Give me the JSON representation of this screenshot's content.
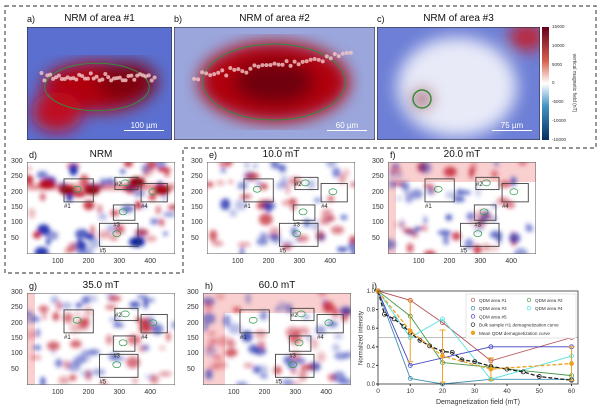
{
  "top_panels": [
    {
      "letter": "a)",
      "title": "NRM of area #1",
      "scale_bar": "100 µm"
    },
    {
      "letter": "b)",
      "title": "NRM of area #2",
      "scale_bar": "60 µm"
    },
    {
      "letter": "c)",
      "title": "NRM of area #3",
      "scale_bar": "75 µm"
    }
  ],
  "colorbar": {
    "label": "vertical magnetic field (nT)",
    "ticks": [
      "15000",
      "10000",
      "5000",
      "0",
      "-5000",
      "-10000",
      "-15000"
    ],
    "colors": [
      "#67001f",
      "#d6604d",
      "#ffffff",
      "#4393c3",
      "#053061"
    ]
  },
  "map_panels": [
    {
      "letter": "d)",
      "title": "NRM"
    },
    {
      "letter": "e)",
      "title": "10.0 mT"
    },
    {
      "letter": "f)",
      "title": "20.0 mT"
    },
    {
      "letter": "g)",
      "title": "35.0 mT"
    },
    {
      "letter": "h)",
      "title": "60.0 mT"
    }
  ],
  "map_axes": {
    "x_ticks": [
      "100",
      "200",
      "300",
      "400"
    ],
    "y_ticks": [
      "300",
      "250",
      "200",
      "150",
      "100",
      "50"
    ]
  },
  "region_labels": [
    "#1",
    "#2",
    "#3",
    "#4",
    "#5"
  ],
  "chart_data": {
    "type": "line",
    "letter": "i)",
    "xlabel": "Demagnetization field (mT)",
    "ylabel": "Normalized intensity",
    "xlim": [
      0,
      62
    ],
    "ylim": [
      0,
      1.0
    ],
    "x_ticks": [
      0,
      10,
      20,
      30,
      40,
      50,
      60
    ],
    "y_ticks": [
      "0.0",
      "0.2",
      "0.4",
      "0.6",
      "0.8",
      "1.0"
    ],
    "reference_line": 0.5,
    "legend_position": "top-right",
    "series": [
      {
        "name": "QDM area #1",
        "color": "#b5545a",
        "style": "circle",
        "x": [
          0,
          10,
          20,
          35,
          60
        ],
        "y": [
          1.0,
          0.9,
          0.66,
          0.25,
          0.5
        ]
      },
      {
        "name": "QDM area #2",
        "color": "#4a9a4a",
        "style": "circle",
        "x": [
          0,
          10,
          20,
          35,
          60
        ],
        "y": [
          1.0,
          0.73,
          0.23,
          0.18,
          0.09
        ]
      },
      {
        "name": "QDM area #3",
        "color": "#3f8fb0",
        "style": "circle",
        "x": [
          0,
          10,
          20,
          35,
          60
        ],
        "y": [
          1.0,
          0.06,
          0.0,
          0.05,
          0.05
        ]
      },
      {
        "name": "QDM area #4",
        "color": "#4fe0e0",
        "style": "circle",
        "x": [
          0,
          10,
          20,
          35,
          60
        ],
        "y": [
          1.0,
          0.5,
          0.7,
          0.05,
          0.3
        ]
      },
      {
        "name": "QDM area #5",
        "color": "#4040c0",
        "style": "circle",
        "x": [
          0,
          10,
          35,
          60
        ],
        "y": [
          1.0,
          0.2,
          0.4,
          0.4
        ]
      },
      {
        "name": "Bulk sample H1 demagnetization curve",
        "color": "#222222",
        "style": "dashed-circle",
        "x": [
          0,
          2,
          5,
          8,
          10,
          13,
          16,
          20,
          23,
          26,
          30,
          35,
          40,
          45,
          50,
          60
        ],
        "y": [
          1.0,
          0.75,
          0.7,
          0.62,
          0.55,
          0.47,
          0.41,
          0.35,
          0.34,
          0.26,
          0.24,
          0.19,
          0.16,
          0.13,
          0.08,
          0.04
        ]
      },
      {
        "name": "Mean QDM demagnetization curve",
        "color": "#f0a020",
        "style": "dashed-filled-errorbar",
        "x": [
          0,
          10,
          20,
          35,
          60
        ],
        "y": [
          1.0,
          0.57,
          0.3,
          0.16,
          0.22
        ],
        "err": [
          0,
          0.33,
          0.28,
          0.12,
          0.18
        ]
      }
    ]
  }
}
